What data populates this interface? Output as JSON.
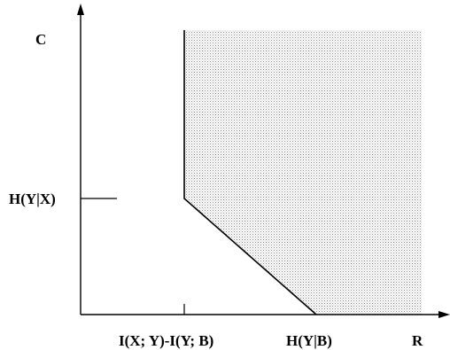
{
  "axes": {
    "y_label": "C",
    "x_label": "R"
  },
  "ticks": {
    "y_tick_label": "H(Y|X)",
    "x_tick_1_label": "I(X; Y)-I(Y; B)",
    "x_tick_2_label": "H(Y|B)"
  },
  "region": {
    "fill_pattern": "dotted",
    "fill_color": "#9a9a9a",
    "line_color": "#000000"
  }
}
